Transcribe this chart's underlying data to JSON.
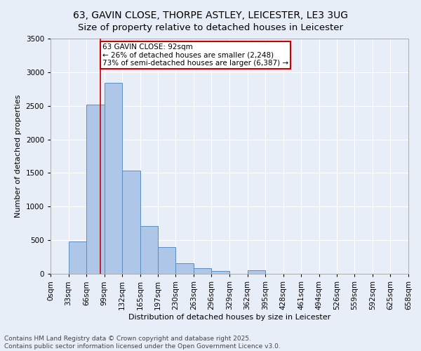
{
  "title_line1": "63, GAVIN CLOSE, THORPE ASTLEY, LEICESTER, LE3 3UG",
  "title_line2": "Size of property relative to detached houses in Leicester",
  "xlabel": "Distribution of detached houses by size in Leicester",
  "ylabel": "Number of detached properties",
  "bin_edges": [
    0,
    33,
    66,
    99,
    132,
    165,
    197,
    230,
    263,
    296,
    329,
    362,
    395,
    428,
    461,
    494,
    526,
    559,
    592,
    625,
    658
  ],
  "bin_labels": [
    "0sqm",
    "33sqm",
    "66sqm",
    "99sqm",
    "132sqm",
    "165sqm",
    "197sqm",
    "230sqm",
    "263sqm",
    "296sqm",
    "329sqm",
    "362sqm",
    "395sqm",
    "428sqm",
    "461sqm",
    "494sqm",
    "526sqm",
    "559sqm",
    "592sqm",
    "625sqm",
    "658sqm"
  ],
  "bar_heights": [
    0,
    480,
    2520,
    2840,
    1535,
    715,
    400,
    155,
    85,
    40,
    0,
    55,
    0,
    0,
    0,
    0,
    0,
    0,
    0,
    0
  ],
  "bar_color": "#aec6e8",
  "bar_edge_color": "#5a8fc2",
  "vline_x": 92,
  "vline_color": "#cc0000",
  "annotation_line1": "63 GAVIN CLOSE: 92sqm",
  "annotation_line2": "← 26% of detached houses are smaller (2,248)",
  "annotation_line3": "73% of semi-detached houses are larger (6,387) →",
  "annotation_box_color": "#cc0000",
  "ylim": [
    0,
    3500
  ],
  "yticks": [
    0,
    500,
    1000,
    1500,
    2000,
    2500,
    3000,
    3500
  ],
  "background_color": "#e8eef7",
  "grid_color": "#ffffff",
  "footer_line1": "Contains HM Land Registry data © Crown copyright and database right 2025.",
  "footer_line2": "Contains public sector information licensed under the Open Government Licence v3.0.",
  "title_fontsize": 10,
  "axis_label_fontsize": 8,
  "tick_fontsize": 7.5,
  "annotation_fontsize": 7.5,
  "footer_fontsize": 6.5
}
